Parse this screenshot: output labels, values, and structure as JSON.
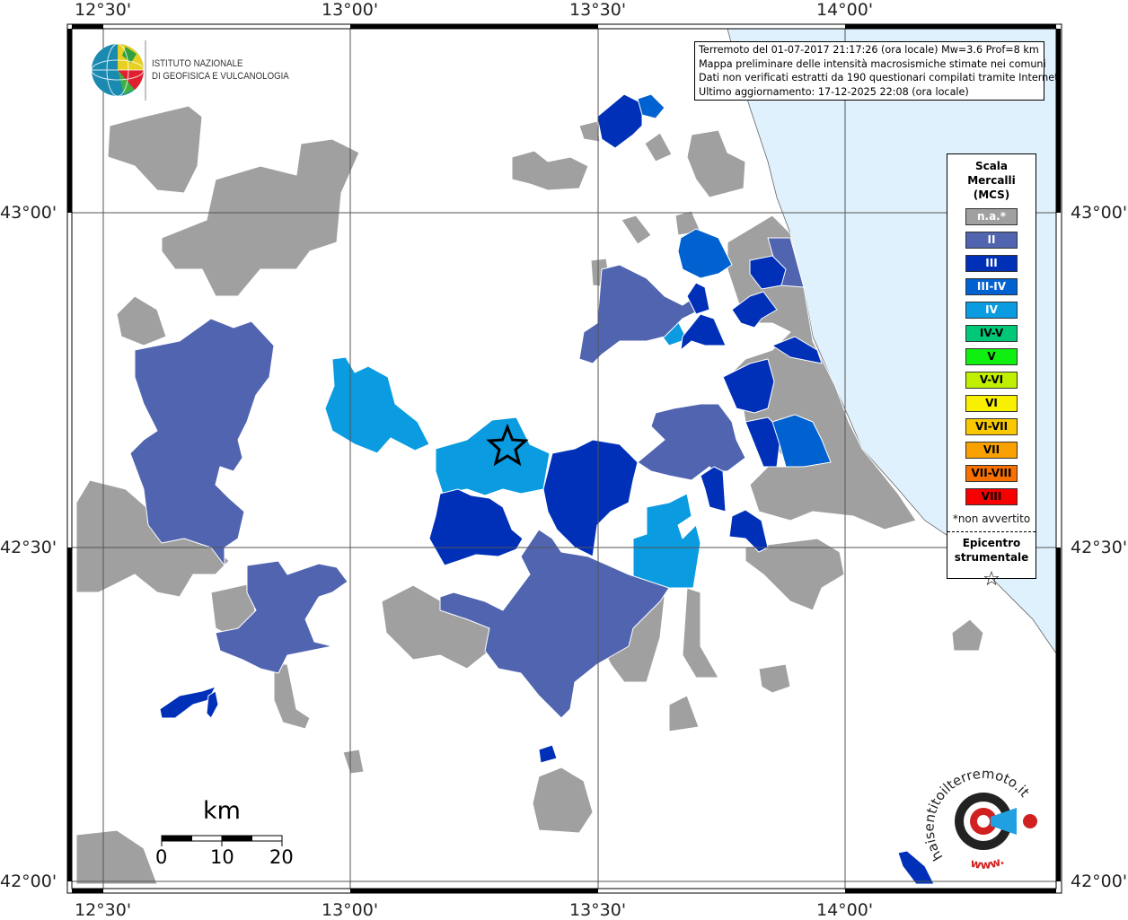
{
  "map": {
    "longitude_ticks": [
      "12°30'",
      "13°00'",
      "13°30'",
      "14°00'"
    ],
    "latitude_ticks": [
      "43°00'",
      "42°30'",
      "42°00'"
    ],
    "sea_color": "#dff1fd",
    "land_color": "#ffffff",
    "epicenter_icon": "star-icon"
  },
  "logos": {
    "ingv": {
      "line1": "ISTITUTO NAZIONALE",
      "line2": "DI GEOFISICA E VULCANOLOGIA"
    },
    "hsit": "www.haisentitoilterremoto.it"
  },
  "info": {
    "line1": "Terremoto del 01-07-2017 21:17:26 (ora locale) Mw=3.6 Prof=8 km",
    "line2": "Mappa preliminare delle intensità macrosismiche stimate nei comuni",
    "line3": "Dati non verificati estratti da 190 questionari compilati tramite Internet.",
    "line4": "Ultimo aggiornamento: 17-12-2025 22:08 (ora locale)"
  },
  "legend": {
    "title1": "Scala",
    "title2": "Mercalli",
    "title3": "(MCS)",
    "classes": [
      {
        "label": "n.a.*",
        "color": "#a0a0a0",
        "text": "#ffffff"
      },
      {
        "label": "II",
        "color": "#5064b0",
        "text": "#ffffff"
      },
      {
        "label": "III",
        "color": "#0030b8",
        "text": "#ffffff"
      },
      {
        "label": "III-IV",
        "color": "#0062d0",
        "text": "#ffffff"
      },
      {
        "label": "IV",
        "color": "#0a9be0",
        "text": "#ffffff"
      },
      {
        "label": "IV-V",
        "color": "#00c878",
        "text": "#000000"
      },
      {
        "label": "V",
        "color": "#10f010",
        "text": "#000000"
      },
      {
        "label": "V-VI",
        "color": "#c0f000",
        "text": "#000000"
      },
      {
        "label": "VI",
        "color": "#f8f000",
        "text": "#000000"
      },
      {
        "label": "VI-VII",
        "color": "#f8c800",
        "text": "#000000"
      },
      {
        "label": "VII",
        "color": "#f8a000",
        "text": "#000000"
      },
      {
        "label": "VII-VIII",
        "color": "#f87000",
        "text": "#000000"
      },
      {
        "label": "VIII",
        "color": "#f80000",
        "text": "#000000"
      }
    ],
    "note": "*non avvertito",
    "epicenter1": "Epicentro",
    "epicenter2": "strumentale",
    "epicenter_symbol": "☆"
  },
  "scale_bar": {
    "unit": "km",
    "labels": [
      "0",
      "10",
      "20"
    ]
  }
}
